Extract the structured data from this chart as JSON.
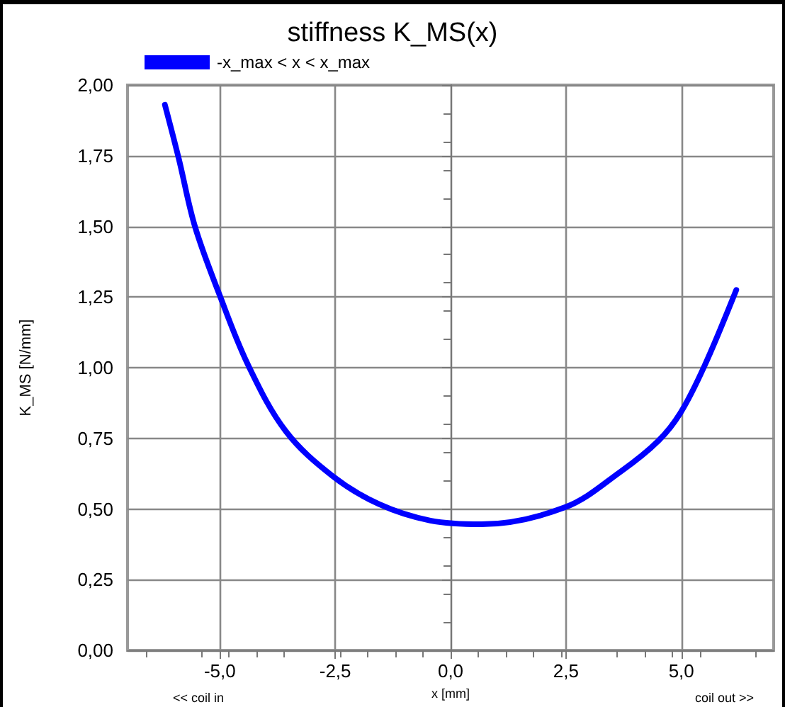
{
  "chart_data": {
    "type": "line",
    "title": "stiffness K_MS(x)",
    "xlabel": "x [mm]",
    "ylabel": "K_MS [N/mm]",
    "annotations": [
      "<< coil in",
      "coil out >>"
    ],
    "x": [
      -6.19,
      -5.89,
      -5.54,
      -5.0,
      -4.38,
      -3.57,
      -2.56,
      -1.55,
      -0.44,
      0.67,
      2.48,
      3.69,
      4.5,
      4.98,
      5.5,
      6.19
    ],
    "series": [
      {
        "name": "-x_max < x < x_max",
        "color": "#0000ff",
        "values": [
          1.93,
          1.74,
          1.5,
          1.255,
          1.007,
          0.775,
          0.617,
          0.517,
          0.459,
          0.446,
          0.506,
          0.633,
          0.741,
          0.84,
          1.006,
          1.275
        ]
      }
    ],
    "xlim": [
      -7,
      7
    ],
    "xticks": [
      {
        "value": -5,
        "label": "-5,0"
      },
      {
        "value": -2.5,
        "label": "-2,5"
      },
      {
        "value": 0,
        "label": "0,0"
      },
      {
        "value": 2.5,
        "label": "2,5"
      },
      {
        "value": 5,
        "label": "5,0"
      }
    ],
    "ylim": [
      0,
      2
    ],
    "yticks": [
      {
        "value": 0,
        "label": "0,00"
      },
      {
        "value": 0.25,
        "label": "0,25"
      },
      {
        "value": 0.5,
        "label": "0,50"
      },
      {
        "value": 0.75,
        "label": "0,75"
      },
      {
        "value": 1,
        "label": "1,00"
      },
      {
        "value": 1.25,
        "label": "1,25"
      },
      {
        "value": 1.5,
        "label": "1,50"
      },
      {
        "value": 1.75,
        "label": "1,75"
      },
      {
        "value": 2,
        "label": "2,00"
      }
    ],
    "grid": true,
    "legend": "top left",
    "marker": "none",
    "line_style": "solid"
  }
}
